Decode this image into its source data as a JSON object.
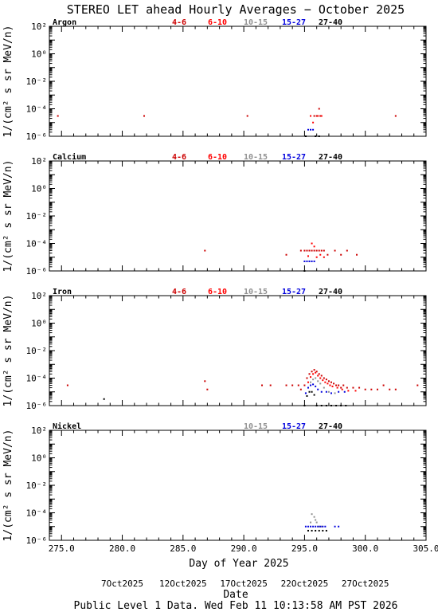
{
  "title": "STEREO LET ahead Hourly Averages − October 2025",
  "ylabel": "1/(cm² s sr MeV/n)",
  "xlabel": "Day of Year 2025",
  "date_label": "Date",
  "footer": "Public Level 1 Data. Wed Feb 11 10:13:58 AM PST 2026",
  "energy_colors": {
    "4-6": "#cc0000",
    "6-10": "#ff0000",
    "10-15": "#909090",
    "15-27": "#0000dd",
    "27-40": "#000000"
  },
  "chart_data": [
    {
      "type": "scatter",
      "title": "Argon",
      "legend": [
        "4-6",
        "6-10",
        "10-15",
        "15-27",
        "27-40"
      ],
      "xlim": [
        274,
        305
      ],
      "ylim_log10": [
        -6,
        2
      ],
      "y_scale": "log",
      "x_ticks": [
        "275.0",
        "280.0",
        "285.0",
        "290.0",
        "295.0",
        "300.0",
        "305.0"
      ],
      "y_ticks": [
        "10⁻⁶",
        "10⁻⁴",
        "10⁻²",
        "10⁰",
        "10²"
      ],
      "series": [
        {
          "name": "4-6",
          "points": [
            [
              274.7,
              3e-05
            ],
            [
              281.8,
              3e-05
            ],
            [
              290.3,
              3e-05
            ],
            [
              295.8,
              3e-05
            ],
            [
              296.0,
              3e-05
            ],
            [
              296.2,
              0.0001
            ],
            [
              296.3,
              3e-05
            ],
            [
              302.5,
              3e-05
            ]
          ]
        },
        {
          "name": "6-10",
          "points": [
            [
              295.5,
              3e-05
            ],
            [
              295.7,
              1e-05
            ],
            [
              296.1,
              3e-05
            ],
            [
              296.4,
              3e-05
            ]
          ]
        },
        {
          "name": "15-27",
          "points": [
            [
              295.3,
              3e-06
            ],
            [
              295.5,
              3e-06
            ],
            [
              295.7,
              3e-06
            ]
          ]
        },
        {
          "name": "27-40",
          "points": [
            [
              295.1,
              1e-06
            ],
            [
              295.9,
              1e-06
            ],
            [
              296.2,
              1e-06
            ]
          ]
        }
      ]
    },
    {
      "type": "scatter",
      "title": "Calcium",
      "legend": [
        "4-6",
        "6-10",
        "10-15",
        "15-27",
        "27-40"
      ],
      "xlim": [
        274,
        305
      ],
      "ylim_log10": [
        -6,
        2
      ],
      "y_scale": "log",
      "x_ticks": [
        "275.0",
        "280.0",
        "285.0",
        "290.0",
        "295.0",
        "300.0",
        "305.0"
      ],
      "y_ticks": [
        "10⁻⁶",
        "10⁻⁴",
        "10⁻²",
        "10⁰",
        "10²"
      ],
      "series": [
        {
          "name": "4-6",
          "points": [
            [
              286.8,
              3e-05
            ],
            [
              293.5,
              1.5e-05
            ],
            [
              294.7,
              3e-05
            ],
            [
              295.0,
              3e-05
            ],
            [
              295.2,
              3e-05
            ],
            [
              295.4,
              3e-05
            ],
            [
              295.6,
              3e-05
            ],
            [
              295.8,
              3e-05
            ],
            [
              296.0,
              3e-05
            ],
            [
              296.2,
              3e-05
            ],
            [
              296.4,
              3e-05
            ],
            [
              296.6,
              3e-05
            ],
            [
              296.9,
              1.5e-05
            ],
            [
              297.5,
              3e-05
            ],
            [
              298.0,
              1.5e-05
            ],
            [
              298.5,
              3e-05
            ],
            [
              299.3,
              1.5e-05
            ]
          ]
        },
        {
          "name": "6-10",
          "points": [
            [
              295.3,
              1.2e-05
            ],
            [
              295.6,
              0.0001
            ],
            [
              295.8,
              6e-05
            ],
            [
              296.0,
              1e-05
            ],
            [
              296.3,
              1.5e-05
            ],
            [
              296.6,
              1e-05
            ]
          ]
        },
        {
          "name": "15-27",
          "points": [
            [
              295.0,
              5e-06
            ],
            [
              295.2,
              5e-06
            ],
            [
              295.4,
              5e-06
            ],
            [
              295.6,
              5e-06
            ],
            [
              295.8,
              5e-06
            ]
          ]
        },
        {
          "name": "27-40",
          "points": [
            [
              295.0,
              1e-06
            ]
          ]
        }
      ]
    },
    {
      "type": "scatter",
      "title": "Iron",
      "legend": [
        "4-6",
        "6-10",
        "10-15",
        "15-27",
        "27-40"
      ],
      "xlim": [
        274,
        305
      ],
      "ylim_log10": [
        -6,
        2
      ],
      "y_scale": "log",
      "x_ticks": [
        "275.0",
        "280.0",
        "285.0",
        "290.0",
        "295.0",
        "300.0",
        "305.0"
      ],
      "y_ticks": [
        "10⁻⁶",
        "10⁻⁴",
        "10⁻²",
        "10⁰",
        "10²"
      ],
      "series": [
        {
          "name": "4-6",
          "points": [
            [
              275.5,
              3e-05
            ],
            [
              286.8,
              6e-05
            ],
            [
              287.0,
              1.5e-05
            ],
            [
              291.5,
              3e-05
            ],
            [
              292.2,
              3e-05
            ],
            [
              293.5,
              3e-05
            ],
            [
              294.0,
              3e-05
            ],
            [
              294.5,
              3e-05
            ],
            [
              294.7,
              1.5e-05
            ],
            [
              295.0,
              3e-05
            ],
            [
              295.2,
              0.0001
            ],
            [
              295.4,
              0.0002
            ],
            [
              295.6,
              0.0003
            ],
            [
              295.8,
              0.0004
            ],
            [
              296.0,
              0.0003
            ],
            [
              296.2,
              0.0002
            ],
            [
              296.4,
              0.00015
            ],
            [
              296.6,
              0.0001
            ],
            [
              296.8,
              8e-05
            ],
            [
              297.0,
              6e-05
            ],
            [
              297.2,
              5e-05
            ],
            [
              297.4,
              4e-05
            ],
            [
              297.6,
              3e-05
            ],
            [
              297.8,
              3e-05
            ],
            [
              298.0,
              2e-05
            ],
            [
              298.2,
              3e-05
            ],
            [
              298.5,
              2e-05
            ],
            [
              299.0,
              2e-05
            ],
            [
              299.5,
              2e-05
            ],
            [
              300.0,
              1.5e-05
            ],
            [
              300.5,
              1.5e-05
            ],
            [
              301.0,
              1.5e-05
            ],
            [
              301.5,
              3e-05
            ],
            [
              302.0,
              1.5e-05
            ],
            [
              302.5,
              1.5e-05
            ],
            [
              304.3,
              3e-05
            ]
          ]
        },
        {
          "name": "6-10",
          "points": [
            [
              295.3,
              5e-05
            ],
            [
              295.5,
              0.00012
            ],
            [
              295.7,
              0.0002
            ],
            [
              295.9,
              0.00025
            ],
            [
              296.1,
              0.00015
            ],
            [
              296.3,
              0.0001
            ],
            [
              296.5,
              7e-05
            ],
            [
              296.7,
              5e-05
            ],
            [
              296.9,
              4e-05
            ],
            [
              297.1,
              3e-05
            ],
            [
              297.3,
              2.5e-05
            ],
            [
              297.7,
              2e-05
            ],
            [
              298.1,
              1.5e-05
            ],
            [
              298.6,
              1.2e-05
            ],
            [
              299.2,
              1.2e-05
            ]
          ]
        },
        {
          "name": "10-15",
          "points": [
            [
              295.3,
              2e-05
            ],
            [
              295.5,
              5e-05
            ],
            [
              295.7,
              8e-05
            ],
            [
              295.9,
              0.0001
            ],
            [
              296.1,
              6e-05
            ],
            [
              296.3,
              4e-05
            ],
            [
              296.6,
              2e-05
            ],
            [
              297.0,
              1e-05
            ],
            [
              297.5,
              8e-06
            ]
          ]
        },
        {
          "name": "15-27",
          "points": [
            [
              295.1,
              8e-06
            ],
            [
              295.3,
              2e-05
            ],
            [
              295.5,
              3e-05
            ],
            [
              295.7,
              3.5e-05
            ],
            [
              295.9,
              2.5e-05
            ],
            [
              296.1,
              1.5e-05
            ],
            [
              296.4,
              1e-05
            ],
            [
              296.8,
              1e-05
            ],
            [
              297.2,
              8e-06
            ],
            [
              297.8,
              1e-05
            ],
            [
              298.3,
              1e-05
            ]
          ]
        },
        {
          "name": "27-40",
          "points": [
            [
              278.5,
              3e-06
            ],
            [
              295.0,
              1e-06
            ],
            [
              295.2,
              5e-06
            ],
            [
              295.4,
              1e-05
            ],
            [
              295.6,
              1e-05
            ],
            [
              295.8,
              6e-06
            ],
            [
              296.0,
              1e-06
            ],
            [
              296.4,
              1e-06
            ],
            [
              296.8,
              1e-06
            ],
            [
              297.2,
              1e-06
            ],
            [
              297.6,
              1e-06
            ],
            [
              298.0,
              1e-06
            ],
            [
              298.4,
              1e-06
            ]
          ]
        }
      ]
    },
    {
      "type": "scatter",
      "title": "Nickel",
      "legend": [
        "10-15",
        "15-27",
        "27-40"
      ],
      "xlim": [
        274,
        305
      ],
      "ylim_log10": [
        -6,
        2
      ],
      "y_scale": "log",
      "x_ticks": [
        "275.0",
        "280.0",
        "285.0",
        "290.0",
        "295.0",
        "300.0",
        "305.0"
      ],
      "y_ticks": [
        "10⁻⁶",
        "10⁻⁴",
        "10⁻²",
        "10⁰",
        "10²"
      ],
      "series": [
        {
          "name": "10-15",
          "points": [
            [
              295.5,
              2e-05
            ],
            [
              295.6,
              8e-05
            ],
            [
              295.8,
              5e-05
            ],
            [
              295.9,
              3e-05
            ],
            [
              296.0,
              2e-05
            ],
            [
              296.2,
              1e-05
            ],
            [
              296.4,
              1e-05
            ]
          ]
        },
        {
          "name": "15-27",
          "points": [
            [
              295.1,
              1e-05
            ],
            [
              295.3,
              1e-05
            ],
            [
              295.5,
              1e-05
            ],
            [
              295.7,
              1e-05
            ],
            [
              295.9,
              1e-05
            ],
            [
              296.1,
              1e-05
            ],
            [
              296.3,
              1e-05
            ],
            [
              296.5,
              1e-05
            ],
            [
              296.7,
              1e-05
            ],
            [
              297.5,
              1e-05
            ],
            [
              297.8,
              1e-05
            ]
          ]
        },
        {
          "name": "27-40",
          "points": [
            [
              295.3,
              5e-06
            ],
            [
              295.6,
              5e-06
            ],
            [
              295.9,
              5e-06
            ],
            [
              296.2,
              5e-06
            ],
            [
              296.5,
              5e-06
            ],
            [
              296.8,
              5e-06
            ]
          ]
        }
      ]
    }
  ],
  "date_axis": {
    "ticks": [
      {
        "doy": 280,
        "label": "7Oct2025"
      },
      {
        "doy": 285,
        "label": "12Oct2025"
      },
      {
        "doy": 290,
        "label": "17Oct2025"
      },
      {
        "doy": 295,
        "label": "22Oct2025"
      },
      {
        "doy": 300,
        "label": "27Oct2025"
      }
    ]
  }
}
